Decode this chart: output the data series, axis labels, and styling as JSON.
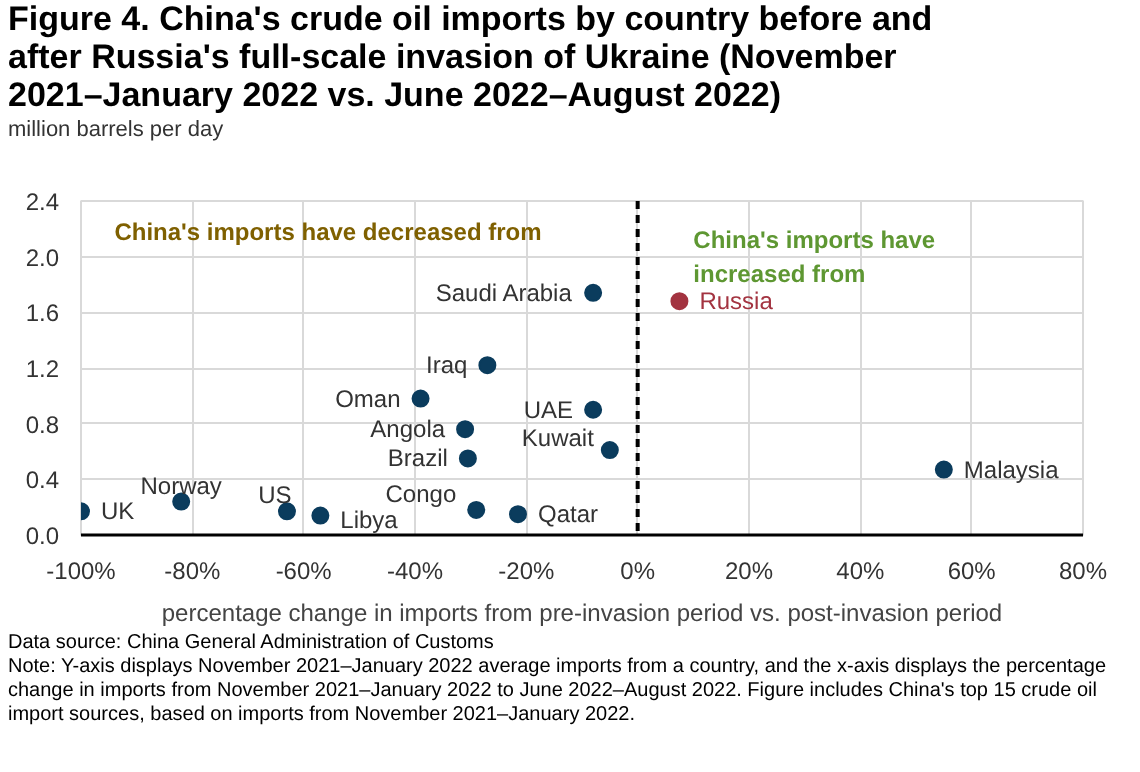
{
  "chart_data": {
    "type": "scatter",
    "title": "Figure 4. China's crude oil imports by country before and after Russia's full-scale invasion of Ukraine (November 2021–January 2022 vs. June 2022–August 2022)",
    "ylabel": "million barrels per day",
    "xlabel": "percentage change in imports from pre-invasion period vs. post-invasion period",
    "series": [
      {
        "name": "UK",
        "color": "#0b3c5d",
        "x": [
          -100
        ],
        "values": [
          0.17
        ]
      },
      {
        "name": "Norway",
        "color": "#0b3c5d",
        "x": [
          -82
        ],
        "values": [
          0.24
        ]
      },
      {
        "name": "US",
        "color": "#0b3c5d",
        "x": [
          -63
        ],
        "values": [
          0.17
        ]
      },
      {
        "name": "Libya",
        "color": "#0b3c5d",
        "x": [
          -57
        ],
        "values": [
          0.14
        ]
      },
      {
        "name": "Oman",
        "color": "#0b3c5d",
        "x": [
          -39
        ],
        "values": [
          0.98
        ]
      },
      {
        "name": "Angola",
        "color": "#0b3c5d",
        "x": [
          -31
        ],
        "values": [
          0.76
        ]
      },
      {
        "name": "Brazil",
        "color": "#0b3c5d",
        "x": [
          -30.5
        ],
        "values": [
          0.55
        ]
      },
      {
        "name": "Iraq",
        "color": "#0b3c5d",
        "x": [
          -27
        ],
        "values": [
          1.22
        ]
      },
      {
        "name": "Congo",
        "color": "#0b3c5d",
        "x": [
          -29
        ],
        "values": [
          0.18
        ]
      },
      {
        "name": "Qatar",
        "color": "#0b3c5d",
        "x": [
          -21.5
        ],
        "values": [
          0.15
        ]
      },
      {
        "name": "Saudi Arabia",
        "color": "#0b3c5d",
        "x": [
          -8
        ],
        "values": [
          1.74
        ]
      },
      {
        "name": "UAE",
        "color": "#0b3c5d",
        "x": [
          -8
        ],
        "values": [
          0.9
        ]
      },
      {
        "name": "Kuwait",
        "color": "#0b3c5d",
        "x": [
          -5
        ],
        "values": [
          0.61
        ]
      },
      {
        "name": "Russia",
        "color": "#a33340",
        "x": [
          7.5
        ],
        "values": [
          1.68
        ]
      },
      {
        "name": "Malaysia",
        "color": "#0b3c5d",
        "x": [
          55
        ],
        "values": [
          0.47
        ]
      }
    ],
    "xlim": [
      -100,
      80
    ],
    "xticks": [
      {
        "value": -100,
        "label": "-100%"
      },
      {
        "value": -80,
        "label": "-80%"
      },
      {
        "value": -60,
        "label": "-60%"
      },
      {
        "value": -40,
        "label": "-40%"
      },
      {
        "value": -20,
        "label": "-20%"
      },
      {
        "value": 0,
        "label": "0%"
      },
      {
        "value": 20,
        "label": "20%"
      },
      {
        "value": 40,
        "label": "40%"
      },
      {
        "value": 60,
        "label": "60%"
      },
      {
        "value": 80,
        "label": "80%"
      }
    ],
    "ylim": [
      0,
      2.4
    ],
    "yticks": [
      {
        "value": 0,
        "label": "0.0"
      },
      {
        "value": 0.4,
        "label": "0.4"
      },
      {
        "value": 0.8,
        "label": "0.8"
      },
      {
        "value": 1.2,
        "label": "1.2"
      },
      {
        "value": 1.6,
        "label": "1.6"
      },
      {
        "value": 2.0,
        "label": "2.0"
      },
      {
        "value": 2.4,
        "label": "2.4"
      }
    ],
    "grid": true,
    "marker": "circle",
    "ref_lines": [
      {
        "axis": "x",
        "value": 0,
        "color": "#000000",
        "line_style": "dashed"
      }
    ],
    "annotations": [
      "China's imports have decreased from",
      "China's imports have increased from",
      "Data source: China General Administration of Customs",
      "Note: Y-axis displays November 2021–January 2022 average imports from a country, and the x-axis displays the percentage change in imports from November 2021–January 2022 to June 2022–August 2022. Figure includes China's top 15 crude oil import sources, based on imports from November 2021–January 2022."
    ]
  }
}
